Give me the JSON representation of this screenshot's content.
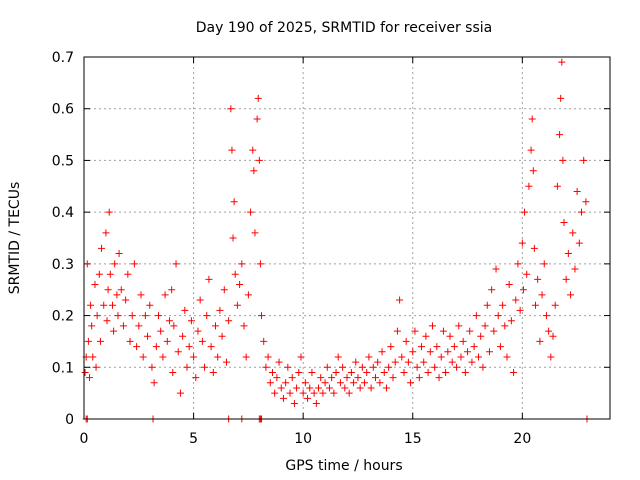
{
  "chart_data": {
    "type": "scatter",
    "title": "Day 190 of 2025, SRMTID for receiver ssia",
    "xlabel": "GPS time / hours",
    "ylabel": "SRMTID / TECUs",
    "xlim": [
      0,
      24
    ],
    "ylim": [
      0,
      0.7
    ],
    "grid": true,
    "marker": "+",
    "color": "#ff0000",
    "x_ticks": [
      0,
      5,
      10,
      15,
      20
    ],
    "x_tick_labels": [
      "0",
      "5",
      "10",
      "15",
      "20"
    ],
    "y_ticks": [
      0,
      0.1,
      0.2,
      0.3,
      0.4,
      0.5,
      0.6,
      0.7
    ],
    "y_tick_labels": [
      "0",
      "0.1",
      "0.2",
      "0.3",
      "0.4",
      "0.5",
      "0.6",
      "0.7"
    ],
    "series": [
      {
        "name": "SRMTID",
        "points": [
          [
            0.05,
            0.09
          ],
          [
            0.1,
            0.12
          ],
          [
            0.15,
            0.3
          ],
          [
            0.2,
            0.15
          ],
          [
            0.25,
            0.08
          ],
          [
            0.3,
            0.22
          ],
          [
            0.35,
            0.18
          ],
          [
            0.4,
            0.12
          ],
          [
            0.5,
            0.26
          ],
          [
            0.55,
            0.1
          ],
          [
            0.6,
            0.2
          ],
          [
            0.7,
            0.28
          ],
          [
            0.75,
            0.15
          ],
          [
            0.8,
            0.33
          ],
          [
            0.9,
            0.22
          ],
          [
            1.0,
            0.36
          ],
          [
            1.05,
            0.19
          ],
          [
            1.1,
            0.25
          ],
          [
            1.15,
            0.4
          ],
          [
            1.2,
            0.28
          ],
          [
            1.3,
            0.22
          ],
          [
            1.35,
            0.17
          ],
          [
            1.4,
            0.3
          ],
          [
            1.5,
            0.24
          ],
          [
            1.55,
            0.2
          ],
          [
            1.6,
            0.32
          ],
          [
            1.7,
            0.25
          ],
          [
            1.8,
            0.18
          ],
          [
            1.9,
            0.23
          ],
          [
            2.0,
            0.28
          ],
          [
            2.1,
            0.15
          ],
          [
            2.2,
            0.2
          ],
          [
            2.3,
            0.3
          ],
          [
            2.4,
            0.14
          ],
          [
            2.5,
            0.18
          ],
          [
            2.6,
            0.24
          ],
          [
            2.7,
            0.12
          ],
          [
            2.8,
            0.2
          ],
          [
            2.9,
            0.16
          ],
          [
            3.0,
            0.22
          ],
          [
            3.1,
            0.1
          ],
          [
            3.2,
            0.07
          ],
          [
            3.3,
            0.14
          ],
          [
            3.4,
            0.2
          ],
          [
            3.5,
            0.17
          ],
          [
            3.6,
            0.12
          ],
          [
            3.7,
            0.24
          ],
          [
            3.8,
            0.15
          ],
          [
            3.9,
            0.19
          ],
          [
            4.0,
            0.25
          ],
          [
            4.05,
            0.09
          ],
          [
            4.1,
            0.18
          ],
          [
            4.2,
            0.3
          ],
          [
            4.3,
            0.13
          ],
          [
            4.4,
            0.05
          ],
          [
            4.5,
            0.16
          ],
          [
            4.6,
            0.21
          ],
          [
            4.7,
            0.1
          ],
          [
            4.8,
            0.14
          ],
          [
            4.9,
            0.19
          ],
          [
            5.0,
            0.12
          ],
          [
            5.1,
            0.08
          ],
          [
            5.2,
            0.17
          ],
          [
            5.3,
            0.23
          ],
          [
            5.4,
            0.15
          ],
          [
            5.5,
            0.1
          ],
          [
            5.6,
            0.2
          ],
          [
            5.7,
            0.27
          ],
          [
            5.8,
            0.14
          ],
          [
            5.9,
            0.09
          ],
          [
            6.0,
            0.18
          ],
          [
            6.1,
            0.12
          ],
          [
            6.2,
            0.21
          ],
          [
            6.3,
            0.16
          ],
          [
            6.4,
            0.25
          ],
          [
            6.5,
            0.11
          ],
          [
            6.6,
            0.19
          ],
          [
            6.7,
            0.6
          ],
          [
            6.75,
            0.52
          ],
          [
            6.8,
            0.35
          ],
          [
            6.85,
            0.42
          ],
          [
            6.9,
            0.28
          ],
          [
            7.0,
            0.22
          ],
          [
            7.1,
            0.26
          ],
          [
            7.2,
            0.3
          ],
          [
            7.3,
            0.18
          ],
          [
            7.4,
            0.12
          ],
          [
            7.5,
            0.24
          ],
          [
            7.6,
            0.4
          ],
          [
            7.7,
            0.52
          ],
          [
            7.75,
            0.48
          ],
          [
            7.8,
            0.36
          ],
          [
            7.9,
            0.58
          ],
          [
            7.95,
            0.62
          ],
          [
            8.0,
            0.5
          ],
          [
            8.05,
            0.3
          ],
          [
            8.1,
            0.2
          ],
          [
            8.2,
            0.15
          ],
          [
            8.3,
            0.1
          ],
          [
            8.4,
            0.12
          ],
          [
            8.5,
            0.07
          ],
          [
            8.6,
            0.09
          ],
          [
            8.7,
            0.05
          ],
          [
            8.8,
            0.08
          ],
          [
            8.9,
            0.11
          ],
          [
            9.0,
            0.06
          ],
          [
            9.1,
            0.04
          ],
          [
            9.2,
            0.07
          ],
          [
            9.3,
            0.1
          ],
          [
            9.4,
            0.05
          ],
          [
            9.5,
            0.08
          ],
          [
            9.6,
            0.03
          ],
          [
            9.7,
            0.06
          ],
          [
            9.8,
            0.09
          ],
          [
            9.9,
            0.12
          ],
          [
            10.0,
            0.05
          ],
          [
            10.1,
            0.07
          ],
          [
            10.2,
            0.04
          ],
          [
            10.3,
            0.06
          ],
          [
            10.4,
            0.09
          ],
          [
            10.5,
            0.05
          ],
          [
            10.6,
            0.03
          ],
          [
            10.7,
            0.06
          ],
          [
            10.8,
            0.08
          ],
          [
            10.9,
            0.05
          ],
          [
            11.0,
            0.07
          ],
          [
            11.1,
            0.1
          ],
          [
            11.2,
            0.06
          ],
          [
            11.3,
            0.08
          ],
          [
            11.4,
            0.05
          ],
          [
            11.5,
            0.09
          ],
          [
            11.6,
            0.12
          ],
          [
            11.7,
            0.07
          ],
          [
            11.8,
            0.1
          ],
          [
            11.9,
            0.06
          ],
          [
            12.0,
            0.08
          ],
          [
            12.1,
            0.05
          ],
          [
            12.2,
            0.09
          ],
          [
            12.3,
            0.07
          ],
          [
            12.4,
            0.11
          ],
          [
            12.5,
            0.08
          ],
          [
            12.6,
            0.06
          ],
          [
            12.7,
            0.1
          ],
          [
            12.8,
            0.07
          ],
          [
            12.9,
            0.09
          ],
          [
            13.0,
            0.12
          ],
          [
            13.1,
            0.06
          ],
          [
            13.2,
            0.1
          ],
          [
            13.3,
            0.08
          ],
          [
            13.4,
            0.11
          ],
          [
            13.5,
            0.07
          ],
          [
            13.6,
            0.13
          ],
          [
            13.7,
            0.09
          ],
          [
            13.8,
            0.06
          ],
          [
            13.9,
            0.1
          ],
          [
            14.0,
            0.14
          ],
          [
            14.1,
            0.08
          ],
          [
            14.2,
            0.11
          ],
          [
            14.3,
            0.17
          ],
          [
            14.4,
            0.23
          ],
          [
            14.5,
            0.12
          ],
          [
            14.6,
            0.09
          ],
          [
            14.7,
            0.15
          ],
          [
            14.8,
            0.11
          ],
          [
            14.9,
            0.07
          ],
          [
            15.0,
            0.13
          ],
          [
            15.1,
            0.17
          ],
          [
            15.2,
            0.1
          ],
          [
            15.3,
            0.08
          ],
          [
            15.4,
            0.14
          ],
          [
            15.5,
            0.11
          ],
          [
            15.6,
            0.16
          ],
          [
            15.7,
            0.09
          ],
          [
            15.8,
            0.13
          ],
          [
            15.9,
            0.18
          ],
          [
            16.0,
            0.1
          ],
          [
            16.1,
            0.14
          ],
          [
            16.2,
            0.08
          ],
          [
            16.3,
            0.12
          ],
          [
            16.4,
            0.17
          ],
          [
            16.5,
            0.09
          ],
          [
            16.6,
            0.13
          ],
          [
            16.7,
            0.16
          ],
          [
            16.8,
            0.11
          ],
          [
            16.9,
            0.14
          ],
          [
            17.0,
            0.1
          ],
          [
            17.1,
            0.18
          ],
          [
            17.2,
            0.12
          ],
          [
            17.3,
            0.15
          ],
          [
            17.4,
            0.09
          ],
          [
            17.5,
            0.13
          ],
          [
            17.6,
            0.17
          ],
          [
            17.7,
            0.11
          ],
          [
            17.8,
            0.14
          ],
          [
            17.9,
            0.2
          ],
          [
            18.0,
            0.12
          ],
          [
            18.1,
            0.16
          ],
          [
            18.2,
            0.1
          ],
          [
            18.3,
            0.18
          ],
          [
            18.4,
            0.22
          ],
          [
            18.5,
            0.13
          ],
          [
            18.6,
            0.25
          ],
          [
            18.7,
            0.17
          ],
          [
            18.8,
            0.29
          ],
          [
            18.9,
            0.2
          ],
          [
            19.0,
            0.14
          ],
          [
            19.1,
            0.22
          ],
          [
            19.2,
            0.18
          ],
          [
            19.3,
            0.12
          ],
          [
            19.4,
            0.26
          ],
          [
            19.5,
            0.19
          ],
          [
            19.6,
            0.09
          ],
          [
            19.7,
            0.23
          ],
          [
            19.8,
            0.3
          ],
          [
            19.9,
            0.21
          ],
          [
            20.0,
            0.34
          ],
          [
            20.05,
            0.25
          ],
          [
            20.1,
            0.4
          ],
          [
            20.2,
            0.28
          ],
          [
            20.3,
            0.45
          ],
          [
            20.4,
            0.52
          ],
          [
            20.45,
            0.58
          ],
          [
            20.5,
            0.48
          ],
          [
            20.55,
            0.33
          ],
          [
            20.6,
            0.22
          ],
          [
            20.7,
            0.27
          ],
          [
            20.8,
            0.15
          ],
          [
            20.9,
            0.24
          ],
          [
            21.0,
            0.3
          ],
          [
            21.1,
            0.2
          ],
          [
            21.2,
            0.17
          ],
          [
            21.3,
            0.12
          ],
          [
            21.4,
            0.16
          ],
          [
            21.5,
            0.22
          ],
          [
            21.6,
            0.45
          ],
          [
            21.7,
            0.55
          ],
          [
            21.75,
            0.62
          ],
          [
            21.8,
            0.69
          ],
          [
            21.85,
            0.5
          ],
          [
            21.9,
            0.38
          ],
          [
            22.0,
            0.27
          ],
          [
            22.1,
            0.32
          ],
          [
            22.2,
            0.24
          ],
          [
            22.3,
            0.36
          ],
          [
            22.4,
            0.29
          ],
          [
            22.5,
            0.44
          ],
          [
            22.6,
            0.34
          ],
          [
            22.7,
            0.4
          ],
          [
            22.8,
            0.5
          ],
          [
            22.9,
            0.42
          ]
        ],
        "zero_points": [
          0.1,
          0.15,
          3.15,
          6.6,
          7.2,
          8.0,
          8.05,
          8.1,
          22.95
        ]
      }
    ]
  }
}
